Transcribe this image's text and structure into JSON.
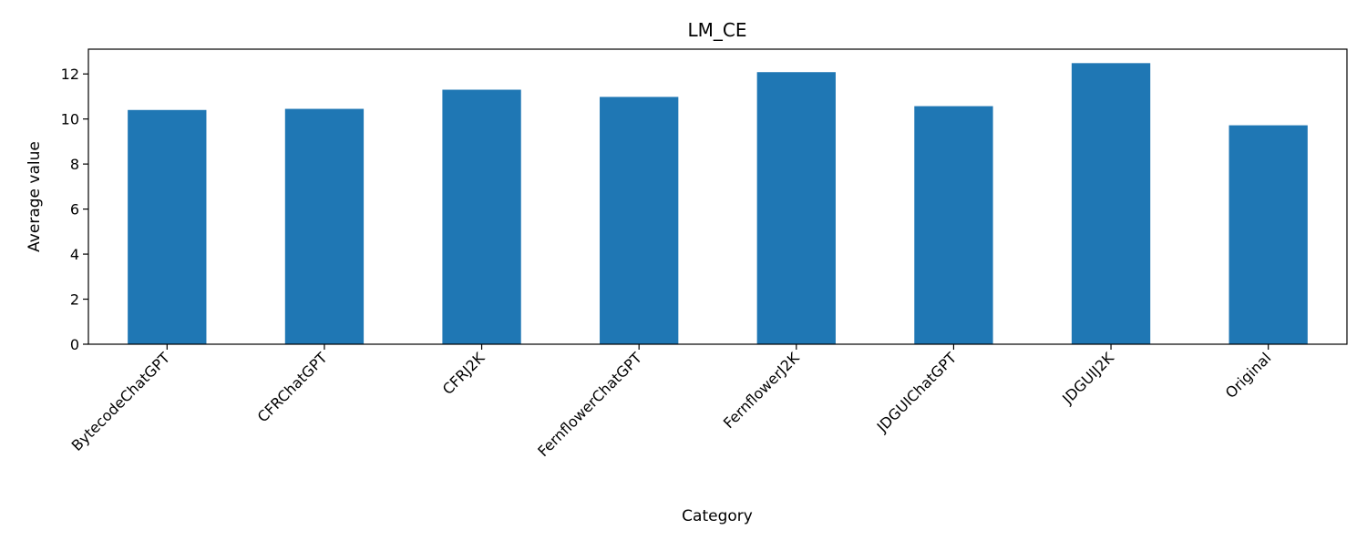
{
  "chart_data": {
    "type": "bar",
    "title": "LM_CE",
    "xlabel": "Category",
    "ylabel": "Average value",
    "categories": [
      "BytecodeChatGPT",
      "CFRChatGPT",
      "CFRJ2K",
      "FernflowerChatGPT",
      "FernflowerJ2K",
      "JDGUIChatGPT",
      "JDGUIJ2K",
      "Original"
    ],
    "values": [
      10.4,
      10.45,
      11.3,
      10.98,
      12.08,
      10.57,
      12.48,
      9.72
    ],
    "ylim": [
      0,
      13.1
    ],
    "yticks": [
      0,
      2,
      4,
      6,
      8,
      10,
      12
    ],
    "bar_color": "#1f77b4",
    "grid": false,
    "legend": "none"
  }
}
